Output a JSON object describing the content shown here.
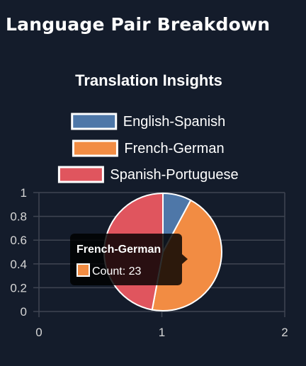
{
  "page": {
    "title": "Language Pair Breakdown"
  },
  "colors": {
    "background": "#141c2b",
    "grid": "#3f4552",
    "axis_text": "#d6d6d6",
    "slice_border": "#ffffff"
  },
  "chart_data": {
    "type": "pie",
    "title": "Translation Insights",
    "legend_position": "top",
    "grid": true,
    "xlim": [
      0,
      2
    ],
    "ylim": [
      0,
      1
    ],
    "x_ticks": [
      "0",
      "1",
      "2"
    ],
    "y_ticks": [
      "0",
      "0.2",
      "0.4",
      "0.6",
      "0.8",
      "1"
    ],
    "slices": [
      {
        "label": "English-Spanish",
        "value": 4,
        "color": "#4e77a8"
      },
      {
        "label": "French-German",
        "value": 23,
        "color": "#f28c43"
      },
      {
        "label": "Spanish-Portuguese",
        "value": 24,
        "color": "#e0555e"
      }
    ],
    "tooltip": {
      "title": "French-German",
      "body": "Count: 23",
      "color": "#f28c43"
    }
  }
}
